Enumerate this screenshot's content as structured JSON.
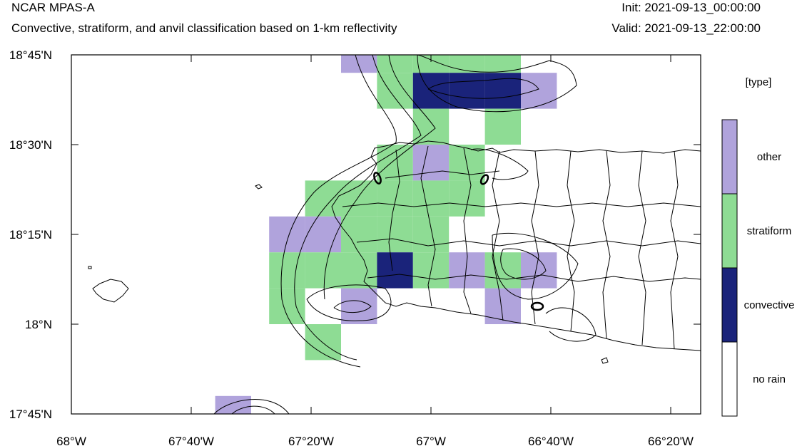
{
  "header": {
    "model": "NCAR MPAS-A",
    "subtitle": "Convective, stratiform, and anvil classification based on 1-km reflectivity",
    "init": "Init: 2021-09-13_00:00:00",
    "valid": "Valid: 2021-09-13_22:00:00"
  },
  "map": {
    "lat_ticks": [
      {
        "label": "18°45'N",
        "value": 18.75
      },
      {
        "label": "18°30'N",
        "value": 18.5
      },
      {
        "label": "18°15'N",
        "value": 18.25
      },
      {
        "label": "18°N",
        "value": 18.0
      },
      {
        "label": "17°45'N",
        "value": 17.75
      }
    ],
    "lon_ticks": [
      {
        "label": "68°W",
        "value": -68.0
      },
      {
        "label": "67°40'W",
        "value": -67.6667
      },
      {
        "label": "67°20'W",
        "value": -67.3333
      },
      {
        "label": "67°W",
        "value": -67.0
      },
      {
        "label": "66°40'W",
        "value": -66.6667
      },
      {
        "label": "66°20'W",
        "value": -66.3333
      }
    ],
    "extent": {
      "lon_min": -68.0,
      "lon_max": -66.25,
      "lat_min": 17.75,
      "lat_max": 18.75
    }
  },
  "legend": {
    "title": "[type]",
    "entries": [
      {
        "label": "other",
        "color": "#b0a3dc"
      },
      {
        "label": "stratiform",
        "color": "#8edc94"
      },
      {
        "label": "convective",
        "color": "#1a237a"
      },
      {
        "label": "no rain",
        "color": "#ffffff"
      }
    ]
  },
  "grid": {
    "cells": [
      {
        "lon": -67.2,
        "lat": 18.75,
        "type": "other"
      },
      {
        "lon": -67.1,
        "lat": 18.75,
        "type": "stratiform"
      },
      {
        "lon": -67.0,
        "lat": 18.75,
        "type": "stratiform"
      },
      {
        "lon": -66.9,
        "lat": 18.75,
        "type": "stratiform"
      },
      {
        "lon": -66.8,
        "lat": 18.75,
        "type": "stratiform"
      },
      {
        "lon": -67.1,
        "lat": 18.65,
        "type": "stratiform"
      },
      {
        "lon": -67.0,
        "lat": 18.65,
        "type": "convective"
      },
      {
        "lon": -66.9,
        "lat": 18.65,
        "type": "convective"
      },
      {
        "lon": -66.8,
        "lat": 18.65,
        "type": "convective"
      },
      {
        "lon": -66.7,
        "lat": 18.65,
        "type": "other"
      },
      {
        "lon": -67.0,
        "lat": 18.55,
        "type": "stratiform"
      },
      {
        "lon": -66.8,
        "lat": 18.55,
        "type": "stratiform"
      },
      {
        "lon": -67.1,
        "lat": 18.45,
        "type": "stratiform"
      },
      {
        "lon": -67.0,
        "lat": 18.45,
        "type": "other"
      },
      {
        "lon": -66.9,
        "lat": 18.45,
        "type": "stratiform"
      },
      {
        "lon": -67.3,
        "lat": 18.35,
        "type": "stratiform"
      },
      {
        "lon": -67.2,
        "lat": 18.35,
        "type": "stratiform"
      },
      {
        "lon": -67.1,
        "lat": 18.35,
        "type": "stratiform"
      },
      {
        "lon": -67.0,
        "lat": 18.35,
        "type": "stratiform"
      },
      {
        "lon": -66.9,
        "lat": 18.35,
        "type": "stratiform"
      },
      {
        "lon": -67.4,
        "lat": 18.25,
        "type": "other"
      },
      {
        "lon": -67.3,
        "lat": 18.25,
        "type": "other"
      },
      {
        "lon": -67.2,
        "lat": 18.25,
        "type": "stratiform"
      },
      {
        "lon": -67.1,
        "lat": 18.25,
        "type": "stratiform"
      },
      {
        "lon": -67.0,
        "lat": 18.25,
        "type": "stratiform"
      },
      {
        "lon": -67.4,
        "lat": 18.15,
        "type": "stratiform"
      },
      {
        "lon": -67.3,
        "lat": 18.15,
        "type": "stratiform"
      },
      {
        "lon": -67.2,
        "lat": 18.15,
        "type": "stratiform"
      },
      {
        "lon": -67.1,
        "lat": 18.15,
        "type": "convective"
      },
      {
        "lon": -67.0,
        "lat": 18.15,
        "type": "stratiform"
      },
      {
        "lon": -66.9,
        "lat": 18.15,
        "type": "other"
      },
      {
        "lon": -66.8,
        "lat": 18.15,
        "type": "stratiform"
      },
      {
        "lon": -66.7,
        "lat": 18.15,
        "type": "other"
      },
      {
        "lon": -67.4,
        "lat": 18.05,
        "type": "stratiform"
      },
      {
        "lon": -67.2,
        "lat": 18.05,
        "type": "other"
      },
      {
        "lon": -66.8,
        "lat": 18.05,
        "type": "other"
      },
      {
        "lon": -67.3,
        "lat": 17.95,
        "type": "stratiform"
      },
      {
        "lon": -67.55,
        "lat": 17.75,
        "type": "other"
      }
    ]
  }
}
